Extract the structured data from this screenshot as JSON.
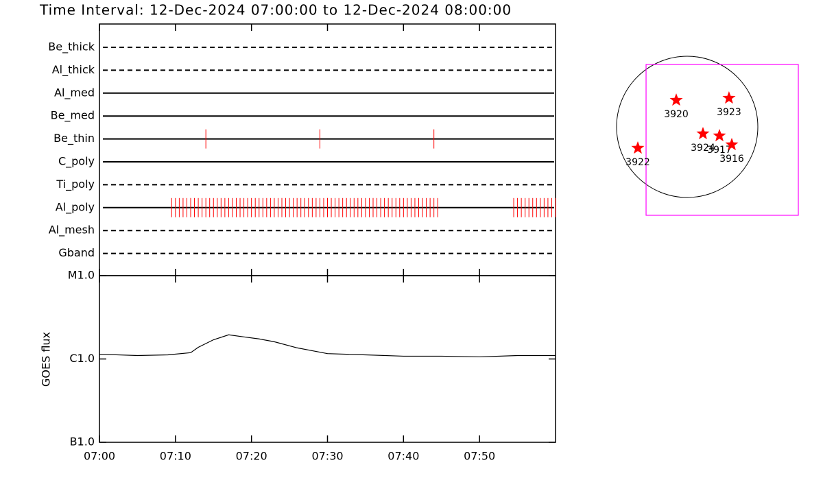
{
  "chart_data": [
    {
      "type": "timeline",
      "title": "Time Interval: 12-Dec-2024 07:00:00 to 12-Dec-2024 08:00:00",
      "categories": [
        "Be_thick",
        "Al_thick",
        "Al_med",
        "Be_med",
        "Be_thin",
        "C_poly",
        "Ti_poly",
        "Al_poly",
        "Al_mesh",
        "Gband"
      ],
      "line_styles": [
        "dashed",
        "dashed",
        "solid",
        "solid",
        "solid",
        "solid",
        "dashed",
        "solid",
        "dashed",
        "dashed"
      ],
      "color": "#ff0000",
      "xlim": [
        0,
        60
      ],
      "events": [
        [],
        [],
        [],
        [],
        [
          14,
          29,
          44
        ],
        [],
        [],
        [
          9.5,
          10,
          10.5,
          11,
          11.5,
          12,
          12.5,
          13,
          13.5,
          14,
          14.5,
          15,
          15.5,
          16,
          16.5,
          17,
          17.5,
          18,
          18.5,
          19,
          19.5,
          20,
          20.5,
          21,
          21.5,
          22,
          22.5,
          23,
          23.5,
          24,
          24.5,
          25,
          25.5,
          26,
          26.5,
          27,
          27.5,
          28,
          28.5,
          29,
          29.5,
          30,
          30.5,
          31,
          31.5,
          32,
          32.5,
          33,
          33.5,
          34,
          34.5,
          35,
          35.5,
          36,
          36.5,
          37,
          37.5,
          38,
          38.5,
          39,
          39.5,
          40,
          40.5,
          41,
          41.5,
          42,
          42.5,
          43,
          43.5,
          44,
          44.5,
          54.5,
          55,
          55.5,
          56,
          56.5,
          57,
          57.5,
          58,
          58.5,
          59,
          59.5,
          60
        ],
        [],
        []
      ]
    },
    {
      "type": "line",
      "ylabel": "GOES flux",
      "log_scale": true,
      "color": "#000000",
      "xlim": [
        0,
        60
      ],
      "xticks": [
        {
          "value": 0,
          "label": "07:00"
        },
        {
          "value": 10,
          "label": "07:10"
        },
        {
          "value": 20,
          "label": "07:20"
        },
        {
          "value": 30,
          "label": "07:30"
        },
        {
          "value": 40,
          "label": "07:40"
        },
        {
          "value": 50,
          "label": "07:50"
        }
      ],
      "ylim": [
        1e-07,
        1e-05
      ],
      "yticks": [
        {
          "value": 1e-07,
          "label": "B1.0"
        },
        {
          "value": 1e-06,
          "label": "C1.0"
        },
        {
          "value": 1e-05,
          "label": "M1.0"
        }
      ],
      "x": [
        0,
        5,
        9,
        12,
        13,
        15,
        17,
        19,
        21,
        23,
        26,
        30,
        35,
        40,
        45,
        50,
        55,
        60
      ],
      "values": [
        1.14e-06,
        1.1e-06,
        1.12e-06,
        1.19e-06,
        1.38e-06,
        1.7e-06,
        1.95e-06,
        1.84e-06,
        1.74e-06,
        1.61e-06,
        1.36e-06,
        1.16e-06,
        1.12e-06,
        1.08e-06,
        1.08e-06,
        1.06e-06,
        1.1e-06,
        1.1e-06
      ]
    },
    {
      "type": "scatter",
      "color": "#ff0000",
      "box_color": "#ff00ff",
      "disk_radius": 960,
      "fov_x": [
        -559,
        1510
      ],
      "fov_y": [
        -1202,
        848
      ],
      "labels": [
        "3920",
        "3923",
        "3924",
        "3917",
        "3916",
        "3922"
      ],
      "x": [
        -149,
        568,
        214,
        438,
        606,
        -671
      ],
      "y": [
        363,
        391,
        -93,
        -121,
        -242,
        -289
      ]
    }
  ]
}
